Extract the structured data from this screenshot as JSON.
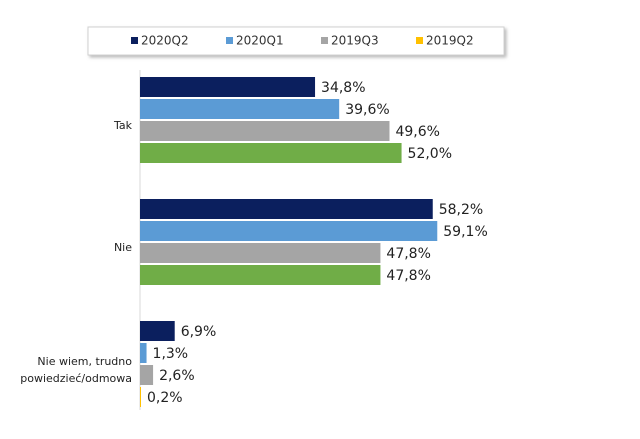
{
  "chart_data": {
    "type": "hbar",
    "categories": [
      "Tak",
      "Nie",
      "Nie wiem, trudno powiedzieć/odmowa"
    ],
    "series": [
      {
        "name": "2020Q2",
        "color": "#0b1f5e",
        "values": [
          34.8,
          58.2,
          6.9
        ],
        "value_labels": [
          "34,8%",
          "58,2%",
          "6,9%"
        ]
      },
      {
        "name": "2020Q1",
        "color": "#5b9bd5",
        "values": [
          39.6,
          59.1,
          1.3
        ],
        "value_labels": [
          "39,6%",
          "59,1%",
          "1,3%"
        ]
      },
      {
        "name": "2019Q3",
        "color": "#a5a5a5",
        "values": [
          49.6,
          47.8,
          2.6
        ],
        "value_labels": [
          "49,6%",
          "47,8%",
          "2,6%"
        ]
      },
      {
        "name": "2019Q2",
        "color": "#ffc000",
        "point_colors": [
          "#70ad47",
          "#70ad47",
          "#ffc000"
        ],
        "values": [
          52.0,
          47.8,
          0.2
        ],
        "value_labels": [
          "52,0%",
          "47,8%",
          "0,2%"
        ]
      }
    ],
    "legend": "top"
  }
}
